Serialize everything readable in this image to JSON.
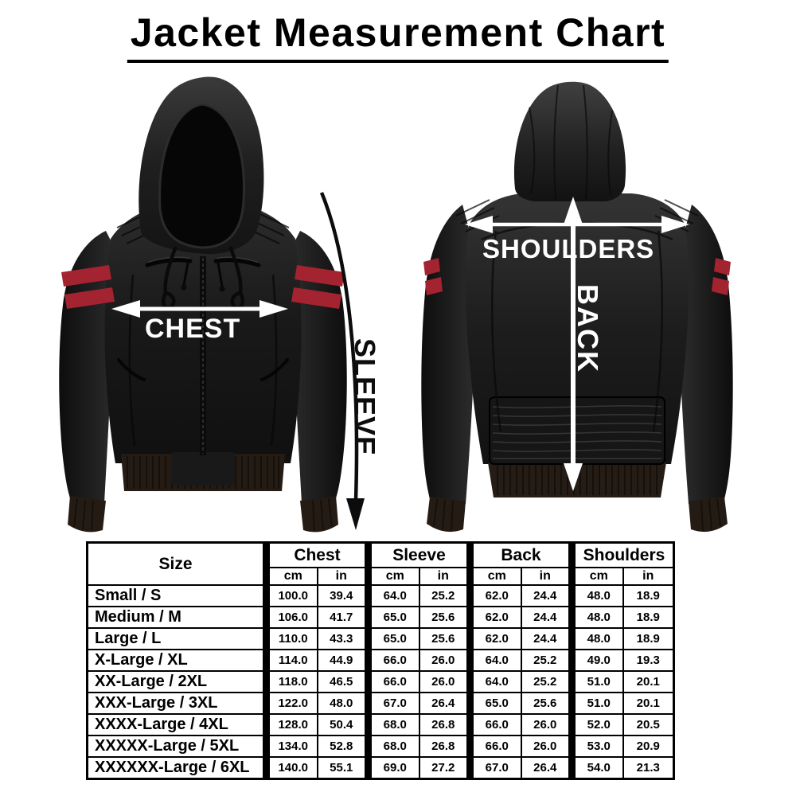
{
  "title": "Jacket Measurement Chart",
  "annotations": {
    "chest": "CHEST",
    "sleeve": "SLEEVE",
    "shoulders": "SHOULDERS",
    "back": "BACK"
  },
  "jackets": {
    "front": "black hooded leather bomber jacket with red arm stripes, front view",
    "back": "black hooded leather bomber jacket with red arm stripes, back view"
  },
  "colors": {
    "background": "#ffffff",
    "text": "#000000",
    "table_border": "#000000",
    "annotation_light": "#ffffff",
    "annotation_dark": "#0d0d0d",
    "jacket_leather": "#1a1a1a",
    "rib_trim": "#241b14",
    "stripe_red": "#a32331"
  },
  "table": {
    "size_header": "Size",
    "group_headers": [
      "Chest",
      "Sleeve",
      "Back",
      "Shoulders"
    ],
    "units": [
      "cm",
      "in"
    ],
    "rows": [
      {
        "size": "Small / S",
        "values": [
          "100.0",
          "39.4",
          "64.0",
          "25.2",
          "62.0",
          "24.4",
          "48.0",
          "18.9"
        ]
      },
      {
        "size": "Medium / M",
        "values": [
          "106.0",
          "41.7",
          "65.0",
          "25.6",
          "62.0",
          "24.4",
          "48.0",
          "18.9"
        ]
      },
      {
        "size": "Large / L",
        "values": [
          "110.0",
          "43.3",
          "65.0",
          "25.6",
          "62.0",
          "24.4",
          "48.0",
          "18.9"
        ]
      },
      {
        "size": "X-Large / XL",
        "values": [
          "114.0",
          "44.9",
          "66.0",
          "26.0",
          "64.0",
          "25.2",
          "49.0",
          "19.3"
        ]
      },
      {
        "size": "XX-Large / 2XL",
        "values": [
          "118.0",
          "46.5",
          "66.0",
          "26.0",
          "64.0",
          "25.2",
          "51.0",
          "20.1"
        ]
      },
      {
        "size": "XXX-Large / 3XL",
        "values": [
          "122.0",
          "48.0",
          "67.0",
          "26.4",
          "65.0",
          "25.6",
          "51.0",
          "20.1"
        ]
      },
      {
        "size": "XXXX-Large / 4XL",
        "values": [
          "128.0",
          "50.4",
          "68.0",
          "26.8",
          "66.0",
          "26.0",
          "52.0",
          "20.5"
        ]
      },
      {
        "size": "XXXXX-Large / 5XL",
        "values": [
          "134.0",
          "52.8",
          "68.0",
          "26.8",
          "66.0",
          "26.0",
          "53.0",
          "20.9"
        ]
      },
      {
        "size": "XXXXXX-Large / 6XL",
        "values": [
          "140.0",
          "55.1",
          "69.0",
          "27.2",
          "67.0",
          "26.4",
          "54.0",
          "21.3"
        ]
      }
    ]
  }
}
